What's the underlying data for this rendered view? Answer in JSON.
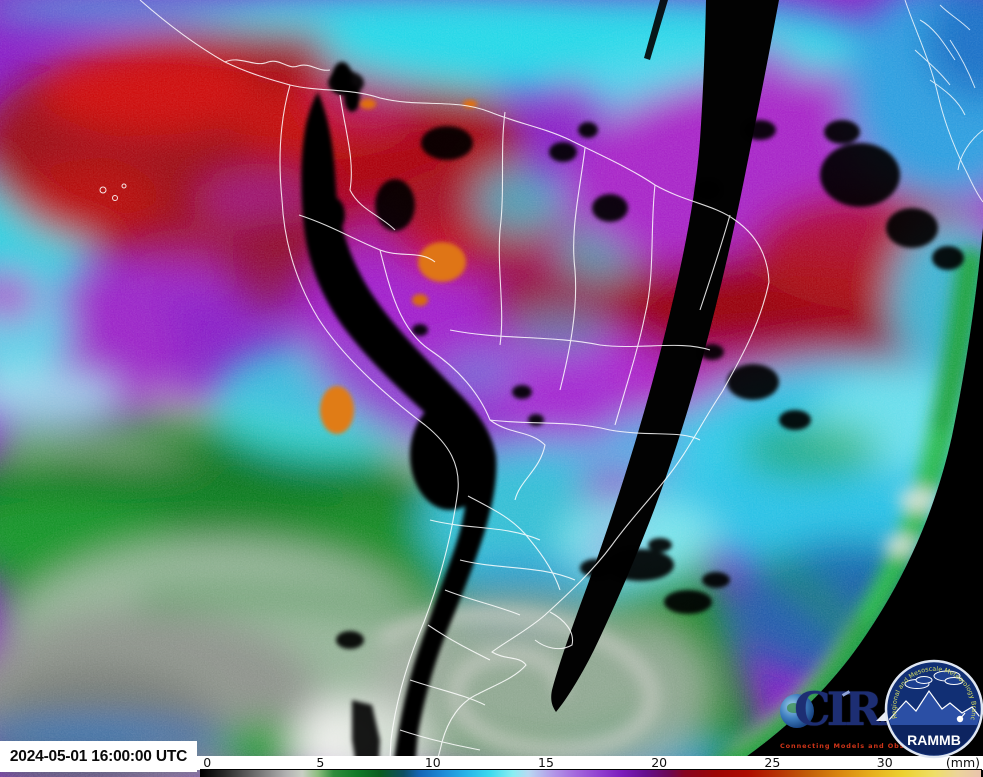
{
  "product": {
    "timestamp": "2024-05-01 16:00:00 UTC",
    "description": "Satellite layered precipitable water full-disk sector over South America"
  },
  "colorbar": {
    "unit_label": "(mm)",
    "ticks": [
      {
        "label": "0",
        "left_pct": 1.3
      },
      {
        "label": "5",
        "left_pct": 15.7
      },
      {
        "label": "10",
        "left_pct": 30.0
      },
      {
        "label": "15",
        "left_pct": 44.4
      },
      {
        "label": "20",
        "left_pct": 58.8
      },
      {
        "label": "25",
        "left_pct": 73.2
      },
      {
        "label": "30",
        "left_pct": 87.5
      }
    ],
    "gradient_stops": [
      {
        "pct": 0,
        "color": "#000000"
      },
      {
        "pct": 3,
        "color": "#2a2a2a"
      },
      {
        "pct": 7,
        "color": "#6e6e6e"
      },
      {
        "pct": 11,
        "color": "#b2b2b2"
      },
      {
        "pct": 13,
        "color": "#c9cfc4"
      },
      {
        "pct": 15,
        "color": "#8cbd7e"
      },
      {
        "pct": 17,
        "color": "#2e8c3c"
      },
      {
        "pct": 20,
        "color": "#0f7a28"
      },
      {
        "pct": 23,
        "color": "#0a5c20"
      },
      {
        "pct": 26,
        "color": "#0d4f63"
      },
      {
        "pct": 28,
        "color": "#1565b5"
      },
      {
        "pct": 31,
        "color": "#1f8ad6"
      },
      {
        "pct": 34,
        "color": "#27b4e8"
      },
      {
        "pct": 37,
        "color": "#3cd9ee"
      },
      {
        "pct": 40,
        "color": "#8aeef2"
      },
      {
        "pct": 42,
        "color": "#b9d9f2"
      },
      {
        "pct": 45,
        "color": "#b39ae8"
      },
      {
        "pct": 48,
        "color": "#a468dd"
      },
      {
        "pct": 51,
        "color": "#9140d0"
      },
      {
        "pct": 54,
        "color": "#7b1cbb"
      },
      {
        "pct": 57,
        "color": "#650f8d"
      },
      {
        "pct": 60,
        "color": "#6b0753"
      },
      {
        "pct": 62,
        "color": "#86041f"
      },
      {
        "pct": 66,
        "color": "#9c0505"
      },
      {
        "pct": 70,
        "color": "#ad0b00"
      },
      {
        "pct": 74,
        "color": "#b63305"
      },
      {
        "pct": 78,
        "color": "#c25f08"
      },
      {
        "pct": 82,
        "color": "#d98810"
      },
      {
        "pct": 86,
        "color": "#e6af1d"
      },
      {
        "pct": 90,
        "color": "#ecd12f"
      },
      {
        "pct": 94,
        "color": "#eede66"
      },
      {
        "pct": 97,
        "color": "#ecd49a"
      },
      {
        "pct": 100,
        "color": "#e9c4ad"
      }
    ]
  },
  "logos": {
    "cira": {
      "acronym": "CIRA",
      "tagline": "Connecting Models and Observations"
    },
    "rammb": {
      "acronym": "RAMMB",
      "curved_text": "Regional and Mesoscale Meteorology Branch"
    }
  },
  "map": {
    "palette": {
      "space_black": "#000000",
      "dry_gray": "#8f948d",
      "dry_green": "#12962a",
      "moist_cyan": "#2fd4e4",
      "moist_blue": "#1f8ad6",
      "humid_purple": "#8a1fc8",
      "very_humid_red": "#9c0712",
      "extreme_orange": "#df7412",
      "terrain_and_datagap": "#050505",
      "border_lines": "#ffffff"
    }
  }
}
